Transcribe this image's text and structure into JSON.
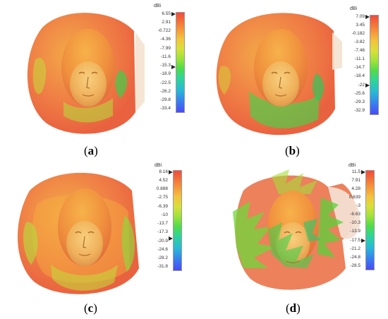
{
  "unit": "dBi",
  "panels": [
    {
      "id": "a",
      "caption": "a",
      "ticks": [
        "6.55",
        "2.91",
        "-0.722",
        "-4.36",
        "-7.99",
        "-11.6",
        "-15.3",
        "-18.9",
        "-22.5",
        "-26.2",
        "-29.8",
        "-33.4"
      ],
      "marker_indices": [
        0,
        6
      ]
    },
    {
      "id": "b",
      "caption": "b",
      "ticks": [
        "7.09",
        "3.45",
        "-0.182",
        "-3.82",
        "-7.46",
        "-11.1",
        "-14.7",
        "-18.4",
        "-22",
        "-25.6",
        "-29.3",
        "-32.9"
      ],
      "marker_indices": [
        0,
        8
      ]
    },
    {
      "id": "c",
      "caption": "c",
      "ticks": [
        "8.16",
        "4.52",
        "0.888",
        "-2.75",
        "-6.39",
        "-10",
        "-13.7",
        "-17.3",
        "-20.9",
        "-24.6",
        "-28.2",
        "-31.8"
      ],
      "marker_indices": [
        0,
        8
      ]
    },
    {
      "id": "d",
      "caption": "d",
      "ticks": [
        "11.5",
        "7.91",
        "4.28",
        "0.639",
        "-3",
        "-6.63",
        "-10.3",
        "-13.9",
        "-17.5",
        "-21.2",
        "-24.8",
        "-28.5"
      ],
      "marker_indices": [
        0,
        8
      ]
    }
  ]
}
